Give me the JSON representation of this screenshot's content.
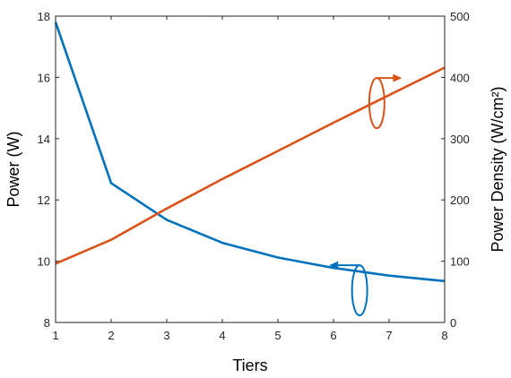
{
  "chart_data": {
    "type": "line",
    "title": "",
    "xlabel": "Tiers",
    "ylabel_left": "Power (W)",
    "ylabel_right": "Power Density (W/cm²)",
    "x": [
      1,
      2,
      3,
      4,
      5,
      6,
      7,
      8
    ],
    "xlim": [
      1,
      8
    ],
    "xticks": [
      1,
      2,
      3,
      4,
      5,
      6,
      7,
      8
    ],
    "ylim_left": [
      8,
      18
    ],
    "yticks_left": [
      8,
      10,
      12,
      14,
      16,
      18
    ],
    "ylim_right": [
      0,
      500
    ],
    "yticks_right": [
      0,
      100,
      200,
      300,
      400,
      500
    ],
    "grid": false,
    "legend": "none",
    "series": [
      {
        "axis": "left",
        "color": "#0072BD",
        "values": [
          17.8,
          12.55,
          11.35,
          10.6,
          10.12,
          9.78,
          9.53,
          9.35
        ]
      },
      {
        "axis": "right",
        "color": "#D95319",
        "values": [
          96,
          135,
          186,
          234,
          280,
          326,
          371,
          416
        ]
      }
    ],
    "annotations": [
      {
        "name": "power-curve-marker",
        "series": 0,
        "x": 6.47,
        "y": 9.05,
        "arrow": "left"
      },
      {
        "name": "density-curve-marker",
        "series": 1,
        "x": 6.78,
        "y": 358,
        "arrow": "right"
      }
    ]
  }
}
